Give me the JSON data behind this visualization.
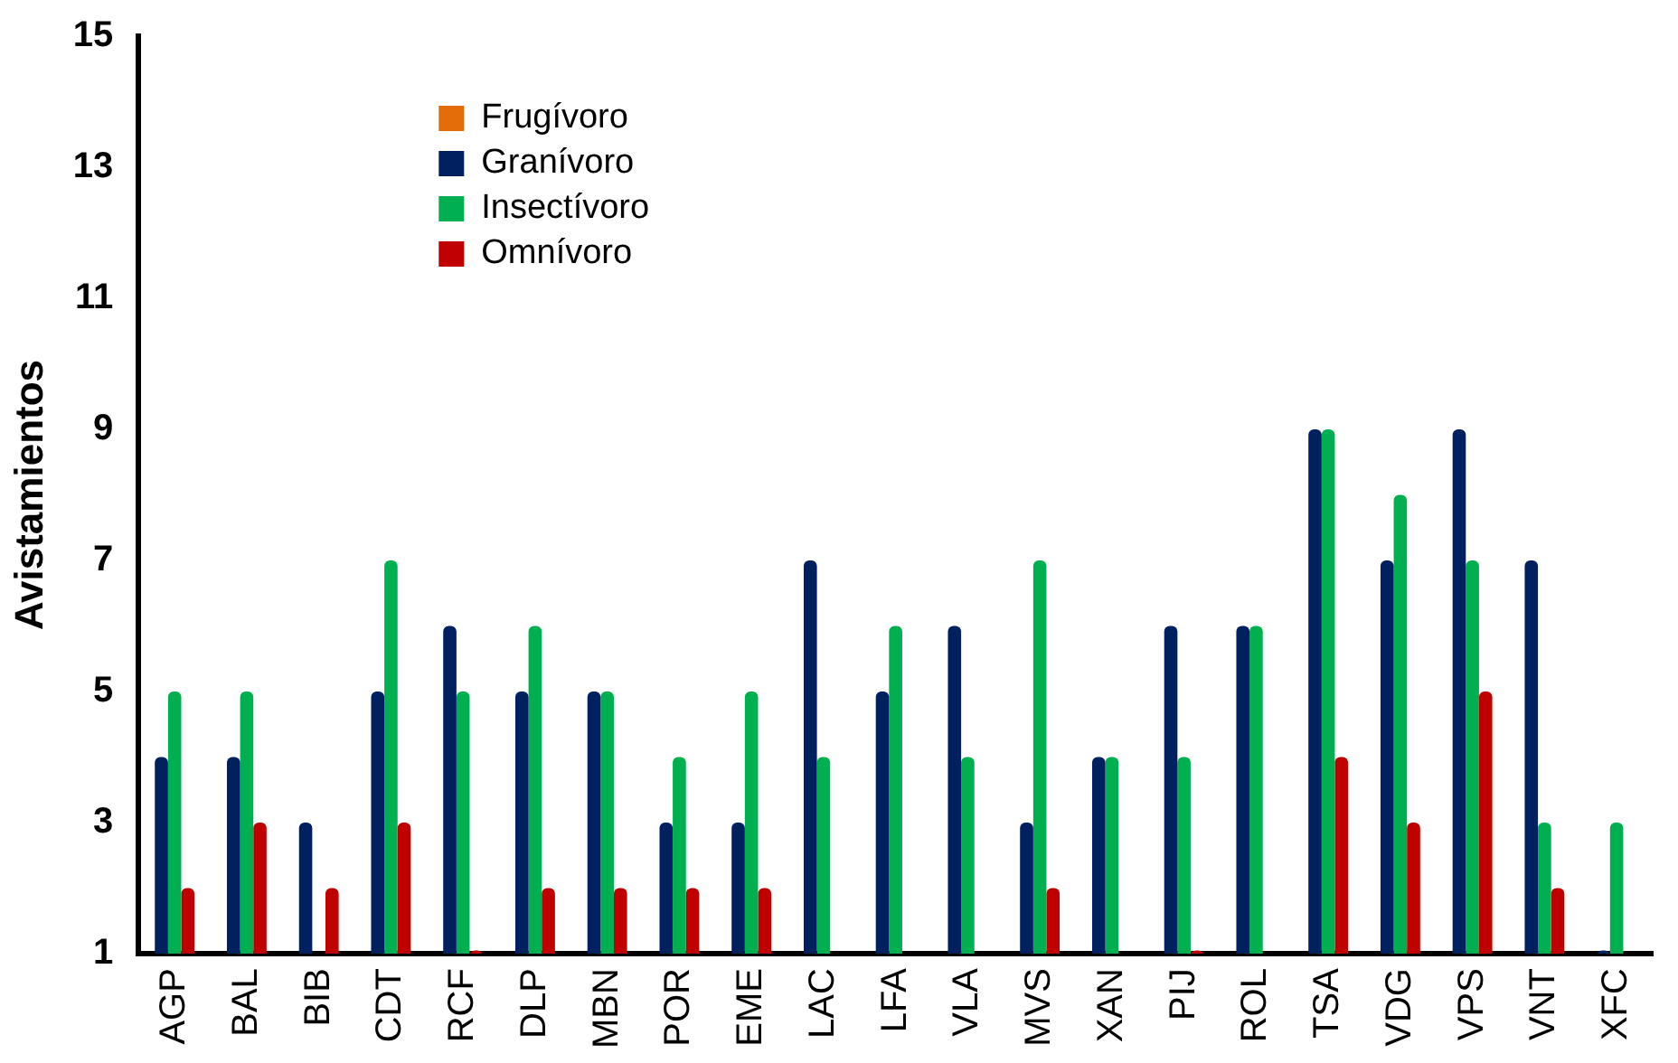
{
  "chart_data": {
    "type": "bar",
    "ylabel": "Avistamientos",
    "categories": [
      "AGP",
      "BAL",
      "BIB",
      "CDT",
      "RCF",
      "DLP",
      "MBN",
      "POR",
      "EME",
      "LAC",
      "LFA",
      "VLA",
      "MVS",
      "XAN",
      "PIJ",
      "ROL",
      "TSA",
      "VDG",
      "VPS",
      "VNT",
      "XFC"
    ],
    "series": [
      {
        "name": "Frugívoro",
        "color": "#e36c09",
        "values": [
          null,
          null,
          null,
          null,
          null,
          null,
          null,
          null,
          null,
          null,
          null,
          null,
          null,
          null,
          null,
          null,
          null,
          null,
          null,
          null,
          null
        ]
      },
      {
        "name": "Granívoro",
        "color": "#002060",
        "values": [
          4,
          4,
          3,
          5,
          6,
          5,
          5,
          3,
          3,
          7,
          5,
          6,
          3,
          4,
          6,
          6,
          9,
          7,
          9,
          7,
          1.05
        ]
      },
      {
        "name": "Insectívoro",
        "color": "#00b050",
        "values": [
          5,
          5,
          null,
          7,
          5,
          6,
          5,
          4,
          5,
          4,
          6,
          4,
          7,
          4,
          4,
          6,
          9,
          8,
          7,
          3,
          3
        ]
      },
      {
        "name": "Omnívoro",
        "color": "#c00000",
        "values": [
          2,
          3,
          2,
          3,
          1.05,
          2,
          2,
          2,
          2,
          null,
          null,
          null,
          2,
          null,
          1.05,
          null,
          4,
          3,
          5,
          2,
          null
        ]
      }
    ],
    "ylim": [
      1,
      15
    ],
    "yticks": [
      1,
      3,
      5,
      7,
      9,
      11,
      13,
      15
    ],
    "grid": false,
    "legend": "top left"
  }
}
